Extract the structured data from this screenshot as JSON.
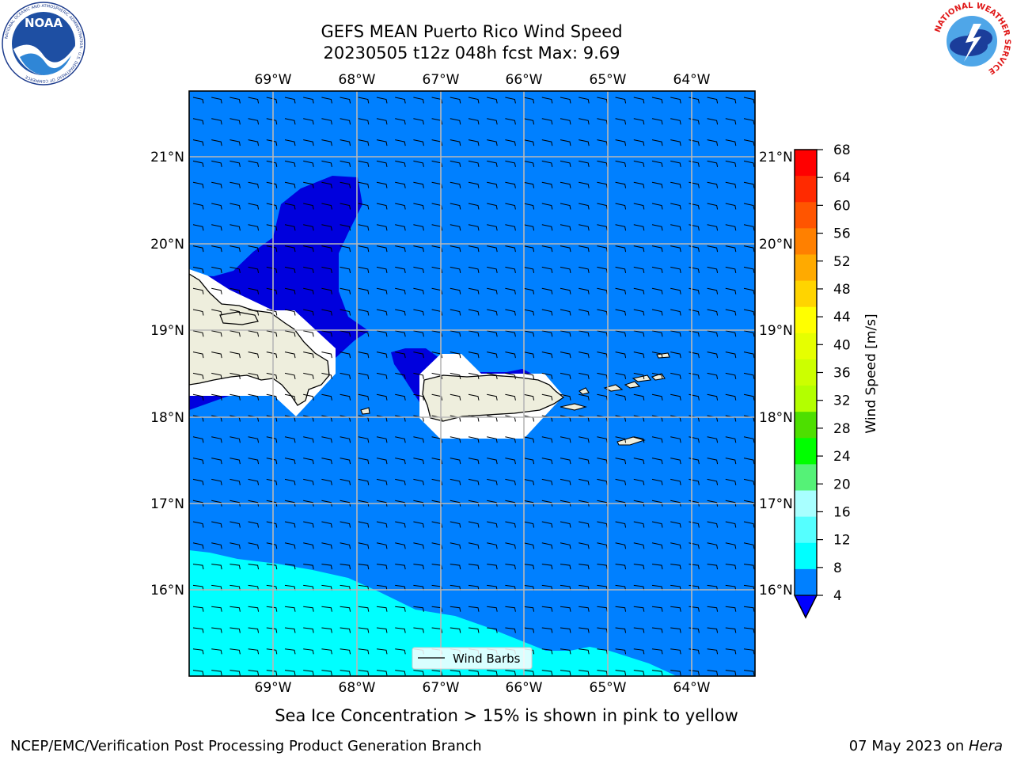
{
  "title_line1": "GEFS MEAN Puerto Rico Wind Speed",
  "title_line2": "20230505 t12z 048h fcst   Max: 9.69",
  "lon_labels": [
    "69°W",
    "68°W",
    "67°W",
    "66°W",
    "65°W",
    "64°W"
  ],
  "lat_labels": [
    "21°N",
    "20°N",
    "19°N",
    "18°N",
    "17°N",
    "16°N"
  ],
  "colorbar": {
    "label": "Wind Speed [m/s]",
    "ticks": [
      "68",
      "64",
      "60",
      "56",
      "52",
      "48",
      "44",
      "40",
      "36",
      "32",
      "28",
      "24",
      "20",
      "16",
      "12",
      "8",
      "4"
    ],
    "levels_colors": [
      "#ff0000",
      "#ff2a00",
      "#ff5500",
      "#ff8000",
      "#ffaa00",
      "#ffd400",
      "#ffff00",
      "#e6ff00",
      "#ccff00",
      "#b3ff00",
      "#4ddf00",
      "#00ff00",
      "#55f277",
      "#a8ffff",
      "#55ffff",
      "#00ffff",
      "#0080ff"
    ],
    "under_color": "#0000ff"
  },
  "legend_label": "Wind Barbs",
  "caption": "Sea Ice Concentration > 15% is shown in pink to yellow",
  "footer_left": "NCEP/EMC/Verification Post Processing Product Generation Branch",
  "footer_right_date": "07 May 2023 on ",
  "footer_right_host": "Hera",
  "logos": {
    "noaa_text": "NOAA",
    "noaa_ring": "NATIONAL OCEANIC AND ATMOSPHERIC ADMINISTRATION · U.S. DEPARTMENT OF COMMERCE",
    "nws_ring": "NATIONAL WEATHER SERVICE"
  },
  "field_colors": {
    "sea_main": "#0080ff",
    "low_speed": "#0000dd",
    "high_speed": "#00ffff",
    "land": "#eeeedd",
    "masked": "#ffffff"
  }
}
